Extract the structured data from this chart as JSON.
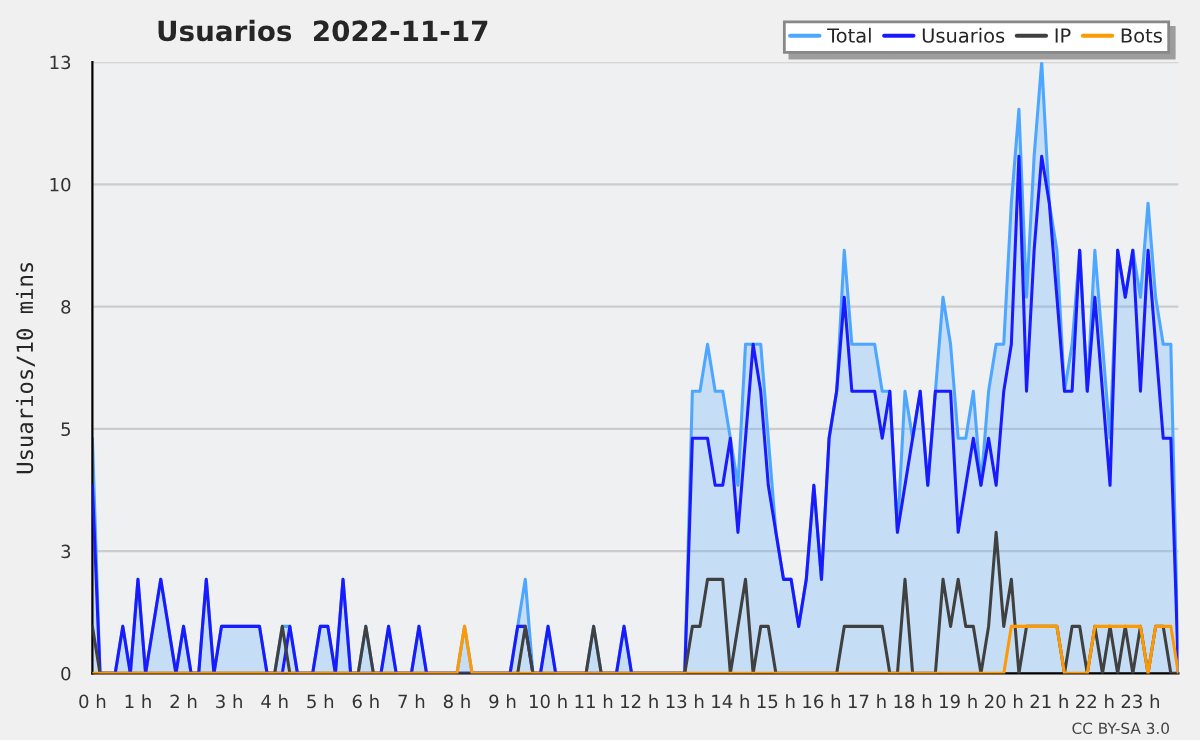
{
  "chart_data": {
    "type": "line",
    "title": "Usuarios  2022-11-17",
    "ylabel": "Usuarios/10 mins",
    "x": [
      0,
      0.167,
      0.333,
      0.5,
      0.667,
      0.833,
      1,
      1.167,
      1.333,
      1.5,
      1.667,
      1.833,
      2,
      2.167,
      2.333,
      2.5,
      2.667,
      2.833,
      3,
      3.167,
      3.333,
      3.5,
      3.667,
      3.833,
      4,
      4.167,
      4.333,
      4.5,
      4.667,
      4.833,
      5,
      5.167,
      5.333,
      5.5,
      5.667,
      5.833,
      6,
      6.167,
      6.333,
      6.5,
      6.667,
      6.833,
      7,
      7.167,
      7.333,
      7.5,
      7.667,
      7.833,
      8,
      8.167,
      8.333,
      8.5,
      8.667,
      8.833,
      9,
      9.167,
      9.333,
      9.5,
      9.667,
      9.833,
      10,
      10.167,
      10.333,
      10.5,
      10.667,
      10.833,
      11,
      11.167,
      11.333,
      11.5,
      11.667,
      11.833,
      12,
      12.167,
      12.333,
      12.5,
      12.667,
      12.833,
      13,
      13.167,
      13.333,
      13.5,
      13.667,
      13.833,
      14,
      14.167,
      14.333,
      14.5,
      14.667,
      14.833,
      15,
      15.167,
      15.333,
      15.5,
      15.667,
      15.833,
      16,
      16.167,
      16.333,
      16.5,
      16.667,
      16.833,
      17,
      17.167,
      17.333,
      17.5,
      17.667,
      17.833,
      18,
      18.167,
      18.333,
      18.5,
      18.667,
      18.833,
      19,
      19.167,
      19.333,
      19.5,
      19.667,
      19.833,
      20,
      20.167,
      20.333,
      20.5,
      20.667,
      20.833,
      21,
      21.167,
      21.333,
      21.5,
      21.667,
      21.833,
      22,
      22.167,
      22.333,
      22.5,
      22.667,
      22.833,
      23,
      23.167,
      23.333,
      23.5,
      23.667,
      23.833
    ],
    "series": [
      {
        "name": "Total",
        "type": "area",
        "color": "#4da6ff",
        "values": [
          5,
          0,
          0,
          0,
          1,
          0,
          2,
          0,
          1,
          2,
          1,
          0,
          1,
          0,
          0,
          2,
          0,
          1,
          1,
          1,
          1,
          1,
          1,
          0,
          0,
          1,
          1,
          0,
          0,
          0,
          1,
          1,
          0,
          2,
          0,
          0,
          1,
          0,
          0,
          1,
          0,
          0,
          0,
          1,
          0,
          0,
          0,
          0,
          0,
          1,
          0,
          0,
          0,
          0,
          0,
          0,
          1,
          2,
          0,
          0,
          1,
          0,
          0,
          0,
          0,
          0,
          1,
          0,
          0,
          0,
          1,
          0,
          0,
          0,
          0,
          0,
          0,
          0,
          0,
          6,
          6,
          7,
          6,
          6,
          5,
          4,
          7,
          7,
          7,
          5,
          3,
          2,
          2,
          1,
          2,
          4,
          2,
          5,
          6,
          9,
          7,
          7,
          7,
          7,
          6,
          6,
          3,
          6,
          5,
          6,
          4,
          6,
          8,
          7,
          5,
          5,
          6,
          4,
          6,
          7,
          7,
          10,
          12,
          8,
          11,
          13,
          10,
          9,
          6,
          7,
          9,
          6,
          9,
          7,
          5,
          9,
          8,
          9,
          8,
          10,
          8,
          7,
          7,
          0
        ]
      },
      {
        "name": "Usuarios",
        "color": "#1a1aff",
        "values": [
          4,
          0,
          0,
          0,
          1,
          0,
          2,
          0,
          1,
          2,
          1,
          0,
          1,
          0,
          0,
          2,
          0,
          1,
          1,
          1,
          1,
          1,
          1,
          0,
          0,
          0,
          1,
          0,
          0,
          0,
          1,
          1,
          0,
          2,
          0,
          0,
          0,
          0,
          0,
          1,
          0,
          0,
          0,
          1,
          0,
          0,
          0,
          0,
          0,
          0,
          0,
          0,
          0,
          0,
          0,
          0,
          1,
          1,
          0,
          0,
          1,
          0,
          0,
          0,
          0,
          0,
          0,
          0,
          0,
          0,
          1,
          0,
          0,
          0,
          0,
          0,
          0,
          0,
          0,
          5,
          5,
          5,
          4,
          4,
          5,
          3,
          5,
          7,
          6,
          4,
          3,
          2,
          2,
          1,
          2,
          4,
          2,
          5,
          6,
          8,
          6,
          6,
          6,
          6,
          5,
          6,
          3,
          4,
          5,
          6,
          4,
          6,
          6,
          6,
          3,
          4,
          5,
          4,
          5,
          4,
          6,
          7,
          11,
          6,
          9,
          11,
          10,
          8,
          6,
          6,
          9,
          6,
          8,
          6,
          4,
          9,
          8,
          9,
          6,
          9,
          7,
          5,
          5,
          0
        ]
      },
      {
        "name": "IP",
        "color": "#404040",
        "values": [
          1,
          0,
          0,
          0,
          0,
          0,
          0,
          0,
          0,
          0,
          0,
          0,
          0,
          0,
          0,
          0,
          0,
          0,
          0,
          0,
          0,
          0,
          0,
          0,
          0,
          1,
          0,
          0,
          0,
          0,
          0,
          0,
          0,
          0,
          0,
          0,
          1,
          0,
          0,
          0,
          0,
          0,
          0,
          0,
          0,
          0,
          0,
          0,
          0,
          0,
          0,
          0,
          0,
          0,
          0,
          0,
          0,
          1,
          0,
          0,
          0,
          0,
          0,
          0,
          0,
          0,
          1,
          0,
          0,
          0,
          0,
          0,
          0,
          0,
          0,
          0,
          0,
          0,
          0,
          1,
          1,
          2,
          2,
          2,
          0,
          1,
          2,
          0,
          1,
          1,
          0,
          0,
          0,
          0,
          0,
          0,
          0,
          0,
          0,
          1,
          1,
          1,
          1,
          1,
          1,
          0,
          0,
          2,
          0,
          0,
          0,
          0,
          2,
          1,
          2,
          1,
          1,
          0,
          1,
          3,
          1,
          2,
          0,
          1,
          1,
          1,
          1,
          1,
          0,
          1,
          1,
          0,
          1,
          0,
          1,
          0,
          1,
          0,
          1,
          0,
          1,
          1,
          0,
          0
        ]
      },
      {
        "name": "Bots",
        "color": "#ff9900",
        "values": [
          0,
          0,
          0,
          0,
          0,
          0,
          0,
          0,
          0,
          0,
          0,
          0,
          0,
          0,
          0,
          0,
          0,
          0,
          0,
          0,
          0,
          0,
          0,
          0,
          0,
          0,
          0,
          0,
          0,
          0,
          0,
          0,
          0,
          0,
          0,
          0,
          0,
          0,
          0,
          0,
          0,
          0,
          0,
          0,
          0,
          0,
          0,
          0,
          0,
          1,
          0,
          0,
          0,
          0,
          0,
          0,
          0,
          0,
          0,
          0,
          0,
          0,
          0,
          0,
          0,
          0,
          0,
          0,
          0,
          0,
          0,
          0,
          0,
          0,
          0,
          0,
          0,
          0,
          0,
          0,
          0,
          0,
          0,
          0,
          0,
          0,
          0,
          0,
          0,
          0,
          0,
          0,
          0,
          0,
          0,
          0,
          0,
          0,
          0,
          0,
          0,
          0,
          0,
          0,
          0,
          0,
          0,
          0,
          0,
          0,
          0,
          0,
          0,
          0,
          0,
          0,
          0,
          0,
          0,
          0,
          0,
          1,
          1,
          1,
          1,
          1,
          1,
          1,
          0,
          0,
          0,
          0,
          1,
          1,
          1,
          1,
          1,
          1,
          1,
          0,
          1,
          1,
          1,
          0
        ]
      }
    ],
    "xlim": [
      0,
      23.833
    ],
    "xticks": [
      {
        "value": 0,
        "label": "0 h"
      },
      {
        "value": 1,
        "label": "1 h"
      },
      {
        "value": 2,
        "label": "2 h"
      },
      {
        "value": 3,
        "label": "3 h"
      },
      {
        "value": 4,
        "label": "4 h"
      },
      {
        "value": 5,
        "label": "5 h"
      },
      {
        "value": 6,
        "label": "6 h"
      },
      {
        "value": 7,
        "label": "7 h"
      },
      {
        "value": 8,
        "label": "8 h"
      },
      {
        "value": 9,
        "label": "9 h"
      },
      {
        "value": 10,
        "label": "10 h"
      },
      {
        "value": 11,
        "label": "11 h"
      },
      {
        "value": 12,
        "label": "12 h"
      },
      {
        "value": 13,
        "label": "13 h"
      },
      {
        "value": 14,
        "label": "14 h"
      },
      {
        "value": 15,
        "label": "15 h"
      },
      {
        "value": 16,
        "label": "16 h"
      },
      {
        "value": 17,
        "label": "17 h"
      },
      {
        "value": 18,
        "label": "18 h"
      },
      {
        "value": 19,
        "label": "19 h"
      },
      {
        "value": 20,
        "label": "20 h"
      },
      {
        "value": 21,
        "label": "21 h"
      },
      {
        "value": 22,
        "label": "22 h"
      },
      {
        "value": 23,
        "label": "23 h"
      }
    ],
    "ylim": [
      0,
      13
    ],
    "yticks": [
      0,
      {
        "value": 2.6,
        "label": "3"
      },
      {
        "value": 5.2,
        "label": "5"
      },
      {
        "value": 7.8,
        "label": "8"
      },
      {
        "value": 10.4,
        "label": "10"
      },
      13
    ],
    "grid": "y",
    "legend": "top right",
    "marker": "none",
    "line_style": "solid",
    "annotations": [
      "CC BY-SA 3.0"
    ]
  }
}
